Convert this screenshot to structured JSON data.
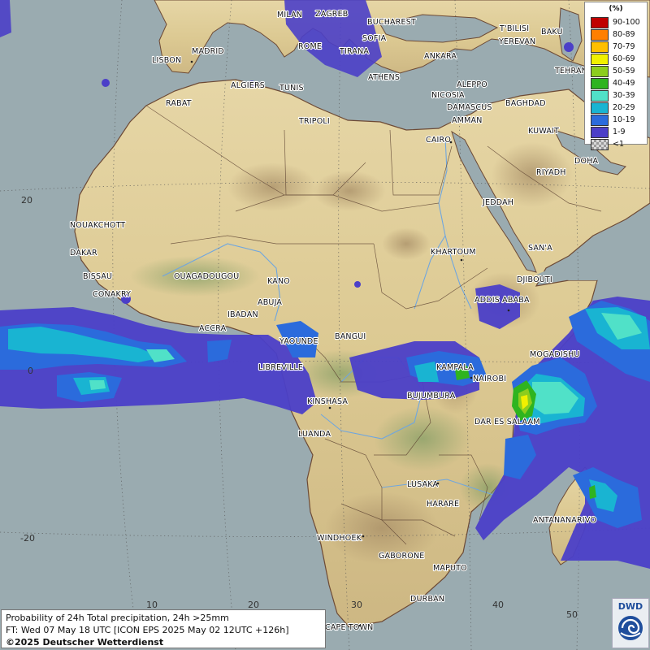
{
  "legend": {
    "unit": "(%)",
    "items": [
      {
        "label": "90-100",
        "color": "#c00000"
      },
      {
        "label": "80-89",
        "color": "#ff7f00"
      },
      {
        "label": "70-79",
        "color": "#ffbf00"
      },
      {
        "label": "60-69",
        "color": "#f0f000"
      },
      {
        "label": "50-59",
        "color": "#8ccd1e"
      },
      {
        "label": "40-49",
        "color": "#2fb41f"
      },
      {
        "label": "30-39",
        "color": "#50e1c8"
      },
      {
        "label": "20-29",
        "color": "#19b4d2"
      },
      {
        "label": "10-19",
        "color": "#2b6bdc"
      },
      {
        "label": "1-9",
        "color": "#4b3fc8"
      },
      {
        "label": "<1",
        "color": "#bcbcbc"
      }
    ]
  },
  "info": {
    "line1": "Probability of 24h Total precipitation, 24h >25mm",
    "line2": "FT: Wed 07 May 18 UTC [ICON EPS 2025 May 02 12UTC +126h]",
    "line3": "©2025 Deutscher Wetterdienst"
  },
  "logo": {
    "text": "DWD"
  },
  "grid_labels": [
    "20",
    "0",
    "-20",
    "10",
    "20",
    "30",
    "40",
    "50"
  ],
  "cities": [
    "MILAN",
    "ZAGREB",
    "BUCHAREST",
    "ROME",
    "SOFIA",
    "TIRANA",
    "ATHENS",
    "ANKARA",
    "T'BILISI",
    "BAKU",
    "YEREVAN",
    "TEHRAN",
    "MADRID",
    "LISBON",
    "ALGIERS",
    "TUNIS",
    "RABAT",
    "TRIPOLI",
    "NICOSIA",
    "ALEPPO",
    "DAMASCUS",
    "BAGHDAD",
    "AMMAN",
    "KUWAIT",
    "CAIRO",
    "DOHA",
    "RIYADH",
    "JEDDAH",
    "NOUAKCHOTT",
    "DAKAR",
    "BISSAU",
    "CONAKRY",
    "OUAGADOUGOU",
    "KANO",
    "ABUJA",
    "IBADAN",
    "ACCRA",
    "KHARTOUM",
    "SAN'A",
    "DJIBOUTI",
    "ADDIS ABABA",
    "YAOUNDE",
    "BANGUI",
    "LIBREVILLE",
    "KAMPALA",
    "MOGADISHU",
    "NAIROBI",
    "KINSHASA",
    "BUJUMBURA",
    "DAR ES SALAAM",
    "LUANDA",
    "LUSAKA",
    "HARARE",
    "ANTANANARIVO",
    "WINDHOEK",
    "GABORONE",
    "MAPUTO",
    "DURBAN",
    "CAPE TOWN"
  ]
}
